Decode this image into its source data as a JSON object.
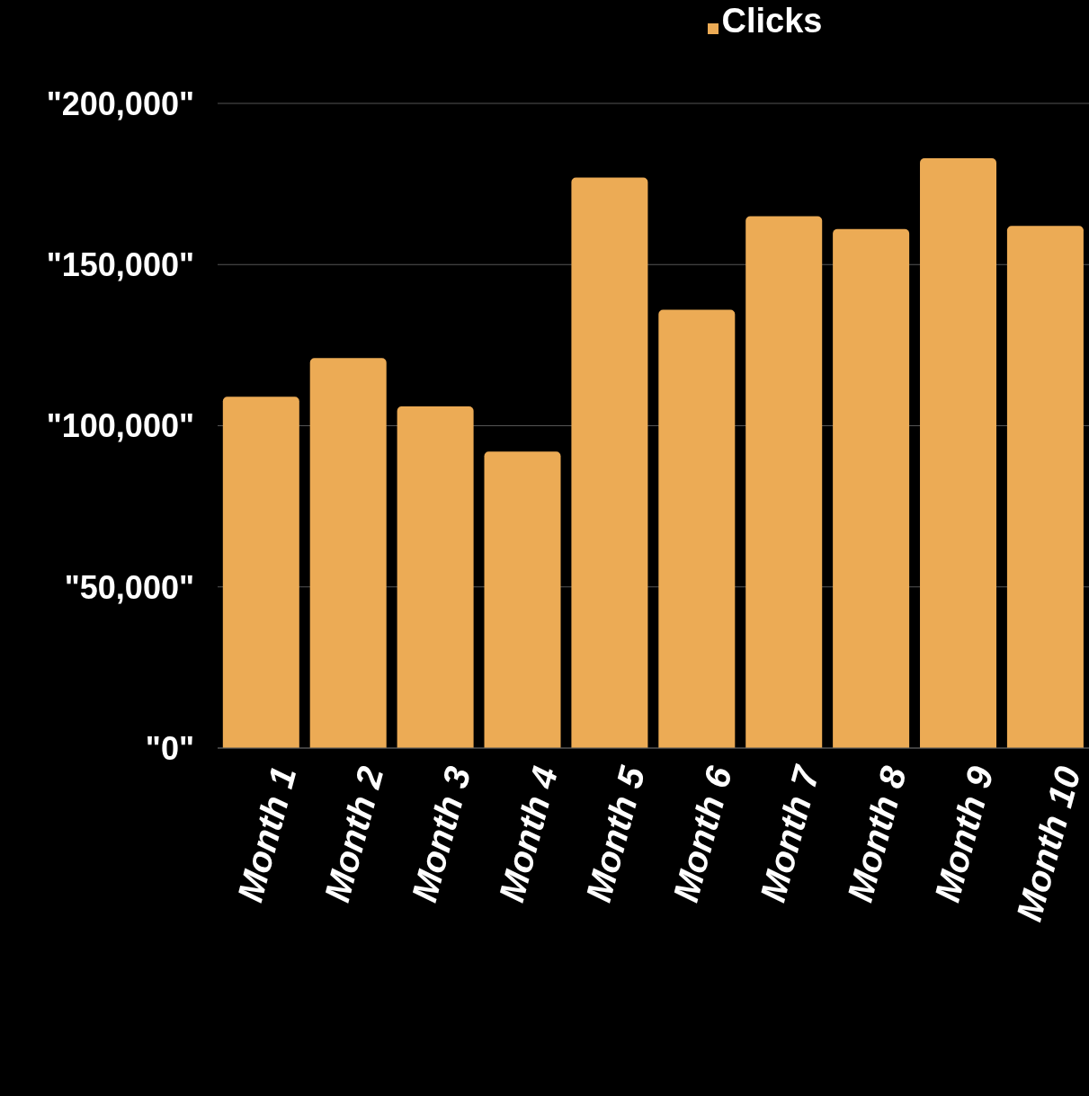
{
  "chart_data": {
    "type": "bar",
    "categories": [
      "Month 1",
      "Month 2",
      "Month 3",
      "Month 4",
      "Month 5",
      "Month 6",
      "Month 7",
      "Month 8",
      "Month 9",
      "Month 10"
    ],
    "series": [
      {
        "name": "Clicks",
        "color": "#ecab55",
        "values": [
          109000,
          121000,
          106000,
          92000,
          177000,
          136000,
          165000,
          161000,
          183000,
          162000
        ]
      }
    ],
    "ylim": [
      0,
      200000
    ],
    "yticks": [
      {
        "value": 0,
        "label": "\"0\""
      },
      {
        "value": 50000,
        "label": "\"50,000\""
      },
      {
        "value": 100000,
        "label": "\"100,000\""
      },
      {
        "value": 150000,
        "label": "\"150,000\""
      },
      {
        "value": 200000,
        "label": "\"200,000\""
      }
    ],
    "grid": "y",
    "legend": "top"
  }
}
